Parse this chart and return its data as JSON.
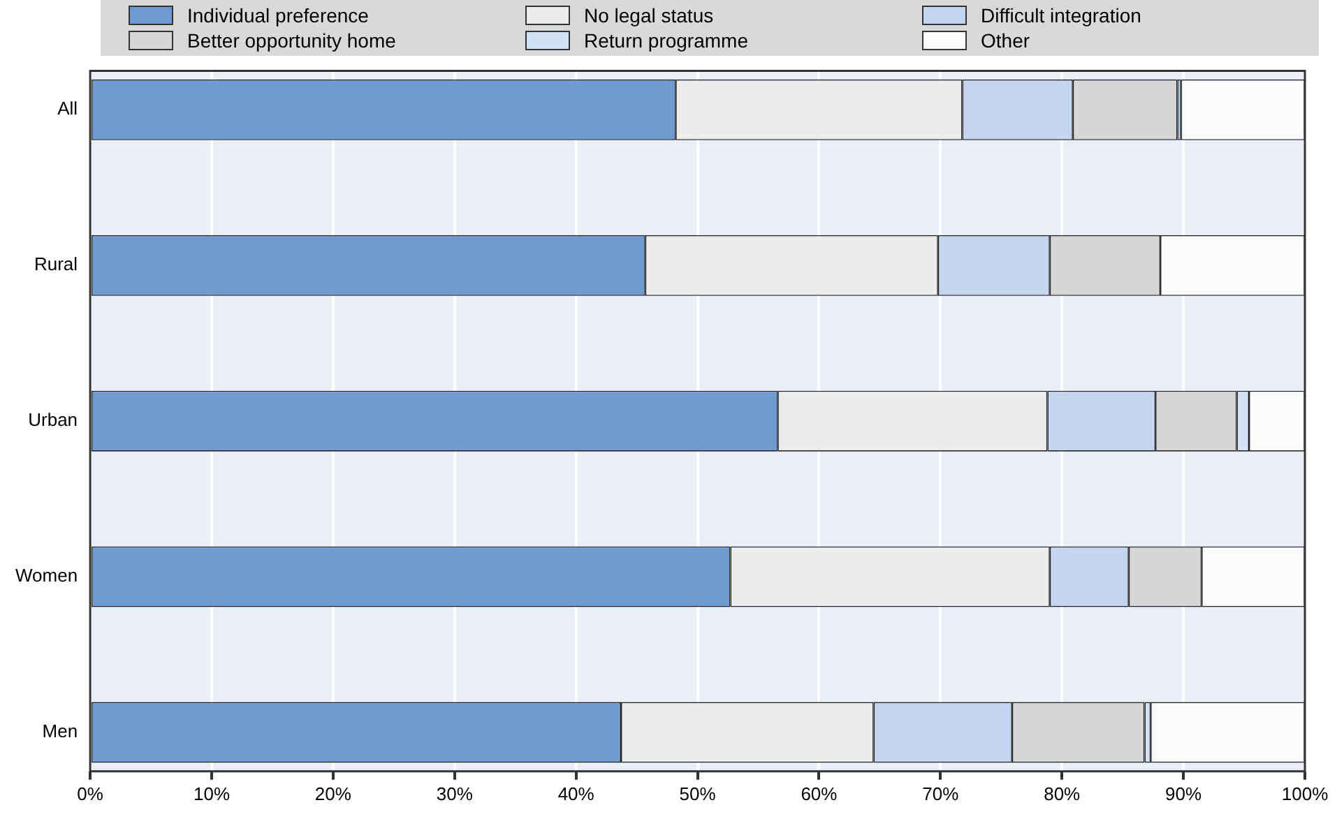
{
  "chart_data": {
    "type": "bar",
    "orientation": "horizontal",
    "stacked": true,
    "categories": [
      "All",
      null,
      "Rural",
      null,
      "Urban",
      null,
      "Women",
      null,
      "Men"
    ],
    "series": [
      {
        "name": "Individual preference",
        "color": "#6f9bd1",
        "values": [
          48.2,
          null,
          45.7,
          null,
          56.6,
          null,
          52.7,
          null,
          43.7
        ]
      },
      {
        "name": "No legal status",
        "color": "#ececec",
        "values": [
          23.6,
          null,
          24.1,
          null,
          22.2,
          null,
          26.3,
          null,
          20.8
        ]
      },
      {
        "name": "Difficult integration",
        "color": "#c6d5ef",
        "values": [
          9.1,
          null,
          9.2,
          null,
          8.9,
          null,
          6.5,
          null,
          11.4
        ]
      },
      {
        "name": "Better opportunity home",
        "color": "#d6d6d6",
        "values": [
          8.6,
          null,
          9.1,
          null,
          6.7,
          null,
          6.0,
          null,
          10.9
        ]
      },
      {
        "name": "Return programme",
        "color": "#d3e2f6",
        "values": [
          0.3,
          null,
          0,
          null,
          1.0,
          null,
          0,
          null,
          0.5
        ]
      },
      {
        "name": "Other",
        "color": "#fafafa",
        "values": [
          10.2,
          null,
          11.9,
          null,
          4.6,
          null,
          8.5,
          null,
          12.7
        ]
      }
    ],
    "xlim": [
      0,
      100
    ],
    "xticks": [
      {
        "value": 0,
        "label": "0%"
      },
      {
        "value": 10,
        "label": "10%"
      },
      {
        "value": 20,
        "label": "20%"
      },
      {
        "value": 30,
        "label": "30%"
      },
      {
        "value": 40,
        "label": "40%"
      },
      {
        "value": 50,
        "label": "50%"
      },
      {
        "value": 60,
        "label": "60%"
      },
      {
        "value": 70,
        "label": "70%"
      },
      {
        "value": 80,
        "label": "80%"
      },
      {
        "value": 90,
        "label": "90%"
      },
      {
        "value": 100,
        "label": "100%"
      }
    ],
    "grid": "x",
    "legend": "top"
  }
}
